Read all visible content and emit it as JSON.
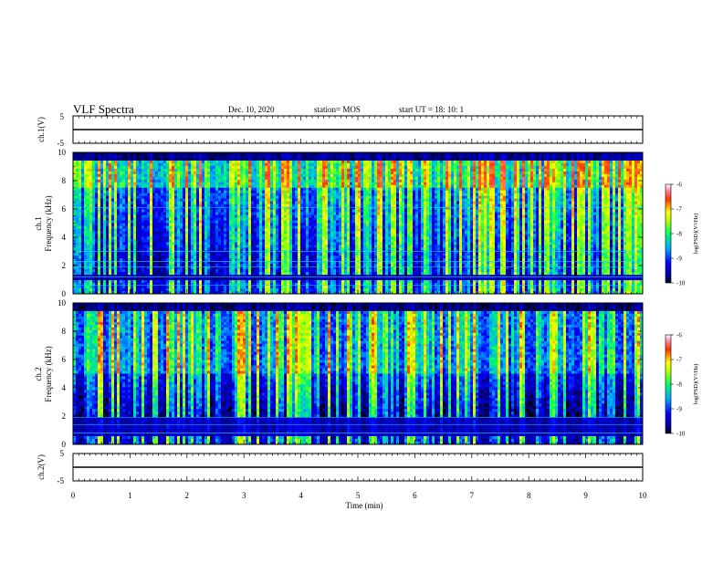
{
  "header": {
    "title": "VLF Spectra",
    "date": "Dec. 10, 2020",
    "station": "station= MOS",
    "start_ut": "start  UT  =   18: 10: 1"
  },
  "chart_data": [
    {
      "type": "line",
      "panel": "ch1-waveform",
      "ylabel": "ch.1(V)",
      "ylim": [
        -5,
        5
      ],
      "y_ticks": [
        5,
        -5
      ],
      "xlim": [
        0,
        10
      ],
      "series": [
        {
          "values": [
            0,
            0
          ]
        }
      ]
    },
    {
      "type": "heatmap",
      "panel": "ch1-spectrogram",
      "ylabel_line1": "ch.1",
      "ylabel_line2": "Frequency  (kHz)",
      "ylim": [
        0,
        10
      ],
      "y_ticks": [
        0,
        2,
        4,
        6,
        8,
        10
      ],
      "xlim": [
        0,
        10
      ],
      "colorbar": {
        "label": "log(PSD)(V²/Hz)",
        "range": [
          -10,
          -6
        ],
        "ticks": [
          -6,
          -7,
          -8,
          -9,
          -10
        ]
      }
    },
    {
      "type": "heatmap",
      "panel": "ch2-spectrogram",
      "ylabel_line1": "ch.2",
      "ylabel_line2": "Frequency  (kHz)",
      "ylim": [
        0,
        10
      ],
      "y_ticks": [
        0,
        2,
        4,
        6,
        8,
        10
      ],
      "xlim": [
        0,
        10
      ],
      "colorbar": {
        "label": "log(PSD)(V²/Hz)",
        "range": [
          -10,
          -6
        ],
        "ticks": [
          -6,
          -7,
          -8,
          -9,
          -10
        ]
      }
    },
    {
      "type": "line",
      "panel": "ch2-waveform",
      "ylabel": "ch.2(V)",
      "ylim": [
        -5,
        5
      ],
      "y_ticks": [
        5,
        -5
      ],
      "xlim": [
        0,
        10
      ],
      "series": [
        {
          "values": [
            0,
            0
          ]
        }
      ]
    }
  ],
  "x_axis": {
    "label": "Time  (min)",
    "range": [
      0,
      10
    ],
    "ticks": [
      "0",
      "1",
      "2",
      "3",
      "4",
      "5",
      "6",
      "7",
      "8",
      "9",
      "10"
    ]
  }
}
